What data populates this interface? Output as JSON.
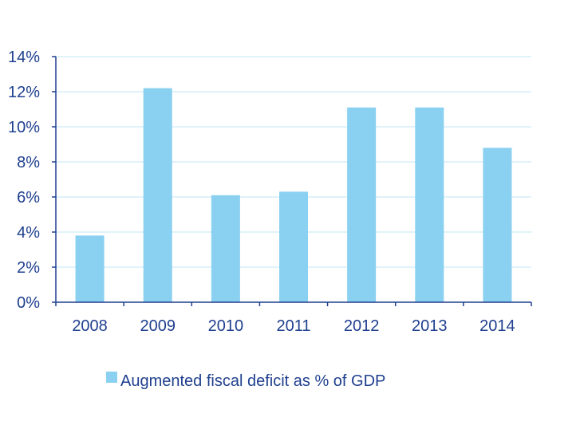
{
  "chart_data": {
    "type": "bar",
    "categories": [
      "2008",
      "2009",
      "2010",
      "2011",
      "2012",
      "2013",
      "2014"
    ],
    "series": [
      {
        "name": "Augmented fiscal deficit as % of GDP",
        "values": [
          3.8,
          12.2,
          6.1,
          6.3,
          11.1,
          11.1,
          8.8
        ],
        "color": "#8ad0f0"
      }
    ],
    "ylim": [
      0,
      14
    ],
    "yticks": [
      0,
      2,
      4,
      6,
      8,
      10,
      12,
      14
    ],
    "ytick_labels": [
      "0%",
      "2%",
      "4%",
      "6%",
      "8%",
      "10%",
      "12%",
      "14%"
    ],
    "grid": true,
    "legend_position": "bottom",
    "title": "",
    "xlabel": "",
    "ylabel": "",
    "axis_color": "#1f3f8f",
    "grid_color": "#d6eef9"
  }
}
